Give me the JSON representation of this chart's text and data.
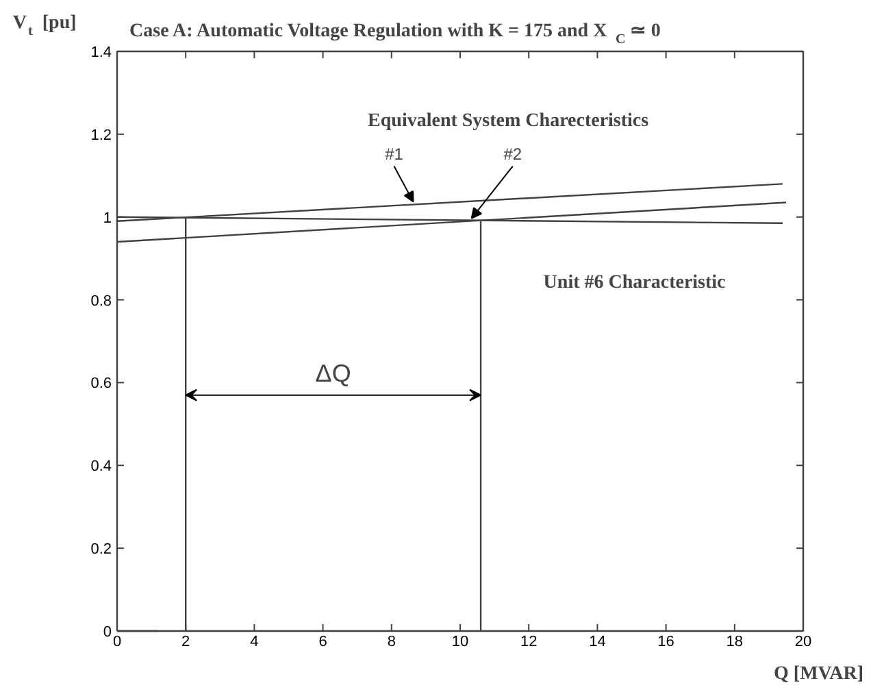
{
  "chart_data": {
    "type": "line",
    "title": "Case A: Automatic Voltage Regulation with K = 175 and  X$_{C}$ ≃ 0",
    "xlabel": "Q [MVAR]",
    "ylabel": "V$_{t}$ [pu]",
    "xlim": [
      0,
      20
    ],
    "ylim": [
      0,
      1.4
    ],
    "xticks": [
      0,
      2,
      4,
      6,
      8,
      10,
      12,
      14,
      16,
      18,
      20
    ],
    "yticks": [
      0,
      0.2,
      0.4,
      0.6,
      0.8,
      1,
      1.2,
      1.4
    ],
    "grid": false,
    "series": [
      {
        "name": "#1",
        "color": "#404040",
        "x": [
          0,
          19.4
        ],
        "values": [
          0.99,
          1.08
        ]
      },
      {
        "name": "#2",
        "color": "#404040",
        "x": [
          0,
          19.5
        ],
        "values": [
          0.94,
          1.035
        ]
      },
      {
        "name": "Unit #6 Characteristic",
        "color": "#404040",
        "x": [
          0,
          19.4
        ],
        "values": [
          1.0,
          0.985
        ]
      },
      {
        "color": "#404040",
        "x": [
          0,
          1.2
        ],
        "values": [
          0,
          0
        ]
      }
    ],
    "ref_lines": [
      {
        "axis": "x",
        "value": 2,
        "color": "#404040"
      },
      {
        "axis": "x",
        "value": 10.6,
        "color": "#404040"
      }
    ],
    "annotations": [
      "Equivalent System Charecteristics",
      "ΔQ"
    ]
  }
}
